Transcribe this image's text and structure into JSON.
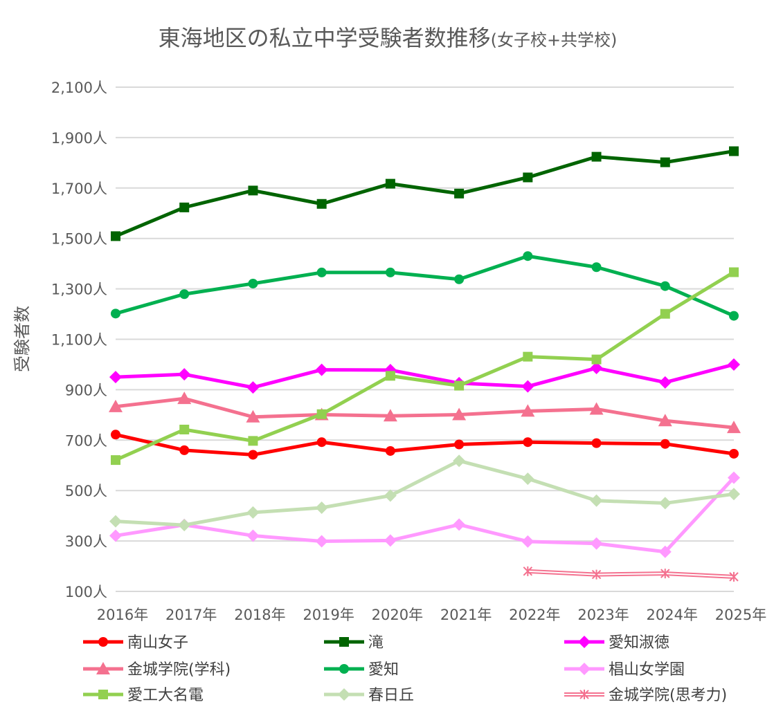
{
  "chart_data": {
    "type": "line",
    "title": "東海地区の私立中学受験者数推移",
    "subtitle": "(女子校+共学校)",
    "xlabel": "",
    "ylabel": "受験者数",
    "ylim": [
      100,
      2100
    ],
    "yticks": [
      100,
      300,
      500,
      700,
      900,
      1100,
      1300,
      1500,
      1700,
      1900,
      2100
    ],
    "ytick_labels": [
      "100人",
      "300人",
      "500人",
      "700人",
      "900人",
      "1,100人",
      "1,300人",
      "1,500人",
      "1,700人",
      "1,900人",
      "2,100人"
    ],
    "categories": [
      "2016年",
      "2017年",
      "2018年",
      "2019年",
      "2020年",
      "2021年",
      "2022年",
      "2023年",
      "2024年",
      "2025年"
    ],
    "grid": true,
    "legend_position": "bottom",
    "series": [
      {
        "name": "南山女子",
        "color": "#ff0000",
        "marker": "circle",
        "values": [
          722,
          660,
          642,
          692,
          657,
          683,
          692,
          688,
          685,
          646
        ]
      },
      {
        "name": "滝",
        "color": "#006400",
        "marker": "square",
        "values": [
          1509,
          1623,
          1690,
          1637,
          1717,
          1678,
          1742,
          1824,
          1802,
          1846
        ]
      },
      {
        "name": "愛知淑徳",
        "color": "#ff00ff",
        "marker": "diamond",
        "values": [
          950,
          961,
          909,
          979,
          978,
          926,
          913,
          986,
          929,
          1000
        ]
      },
      {
        "name": "金城学院(学科)",
        "color": "#f4718f",
        "marker": "triangle",
        "values": [
          833,
          865,
          792,
          801,
          796,
          801,
          815,
          823,
          777,
          750
        ]
      },
      {
        "name": "愛知",
        "color": "#00b050",
        "marker": "circle",
        "values": [
          1202,
          1279,
          1321,
          1365,
          1365,
          1338,
          1430,
          1386,
          1311,
          1193
        ]
      },
      {
        "name": "椙山女学園",
        "color": "#ff99ff",
        "marker": "diamond",
        "values": [
          321,
          364,
          321,
          299,
          302,
          365,
          298,
          290,
          257,
          551
        ]
      },
      {
        "name": "愛工大名電",
        "color": "#92d050",
        "marker": "square",
        "values": [
          621,
          742,
          697,
          803,
          955,
          916,
          1031,
          1020,
          1201,
          1366
        ]
      },
      {
        "name": "春日丘",
        "color": "#c4dfb3",
        "marker": "diamond",
        "values": [
          378,
          363,
          413,
          432,
          480,
          618,
          547,
          460,
          450,
          486
        ]
      },
      {
        "name": "金城学院(思考力)",
        "color": "#f4718f",
        "marker": "star",
        "double": true,
        "values": [
          null,
          null,
          null,
          null,
          null,
          null,
          180,
          167,
          171,
          158
        ]
      }
    ]
  }
}
